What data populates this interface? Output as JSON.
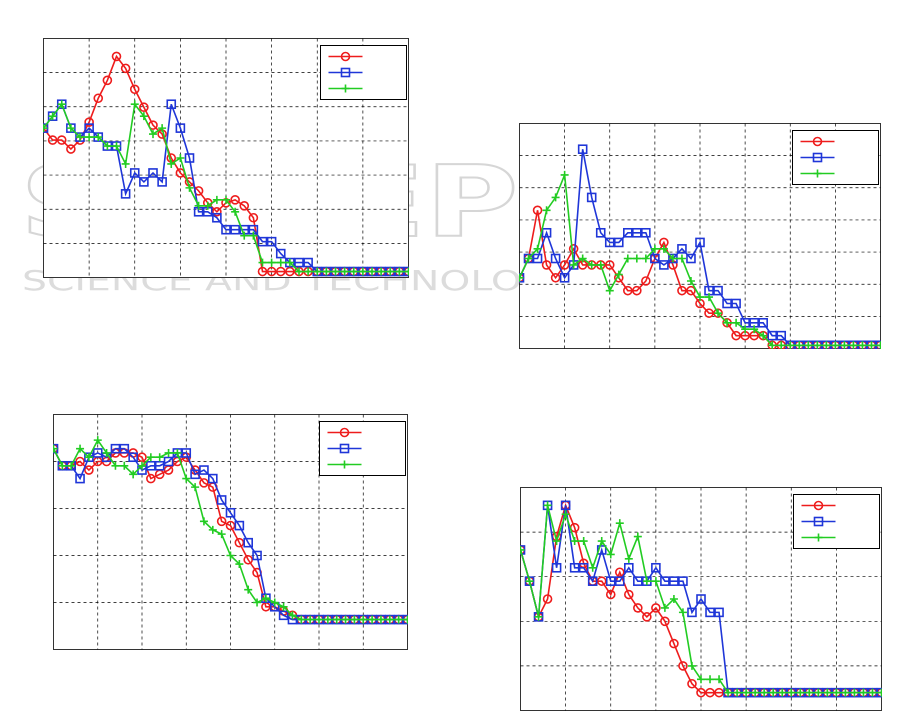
{
  "watermark": {
    "main": "SCITEPRESS",
    "sub": "SCIENCE AND TECHNOLOGY PUBLICATIONS"
  },
  "colors": {
    "s1": "#ee1c1c",
    "s2": "#1f36d8",
    "s3": "#22cc22"
  },
  "chart_data": [
    {
      "type": "line",
      "grid": true,
      "legend": "top-right",
      "xlim": [
        0,
        40
      ],
      "ylim": [
        0,
        8
      ],
      "x": [
        0,
        1,
        2,
        3,
        4,
        5,
        6,
        7,
        8,
        9,
        10,
        11,
        12,
        13,
        14,
        15,
        16,
        17,
        18,
        19,
        20,
        21,
        22,
        23,
        24,
        25,
        26,
        27,
        28,
        29,
        30,
        31,
        32,
        33,
        34,
        35,
        36,
        37,
        38,
        39,
        40
      ],
      "series": [
        {
          "marker": "circle",
          "color_key": "s1",
          "values": [
            5.0,
            4.6,
            4.6,
            4.3,
            4.6,
            5.2,
            6.0,
            6.6,
            7.4,
            7.0,
            6.3,
            5.7,
            5.1,
            4.8,
            4.0,
            3.5,
            3.2,
            2.9,
            2.5,
            2.2,
            2.5,
            2.6,
            2.4,
            2.0,
            0.2,
            0.2,
            0.2,
            0.2,
            0.2,
            0.2,
            0.2,
            0.2,
            0.2,
            0.2,
            0.2,
            0.2,
            0.2,
            0.2,
            0.2,
            0.2,
            0.2
          ]
        },
        {
          "marker": "square",
          "color_key": "s2",
          "values": [
            5.0,
            5.4,
            5.8,
            5.0,
            4.7,
            5.0,
            4.7,
            4.4,
            4.4,
            2.8,
            3.5,
            3.2,
            3.5,
            3.2,
            5.8,
            5.0,
            4.0,
            2.2,
            2.2,
            2.0,
            1.6,
            1.6,
            1.6,
            1.6,
            1.2,
            1.2,
            0.8,
            0.5,
            0.5,
            0.5,
            0.2,
            0.2,
            0.2,
            0.2,
            0.2,
            0.2,
            0.2,
            0.2,
            0.2,
            0.2,
            0.2
          ]
        },
        {
          "marker": "plus",
          "color_key": "s3",
          "values": [
            5.0,
            5.4,
            5.8,
            5.0,
            4.7,
            4.7,
            4.7,
            4.4,
            4.4,
            3.8,
            5.8,
            5.4,
            4.8,
            5.0,
            3.8,
            4.0,
            3.0,
            2.4,
            2.4,
            2.6,
            2.6,
            2.2,
            1.4,
            1.4,
            0.5,
            0.5,
            0.5,
            0.5,
            0.2,
            0.2,
            0.2,
            0.2,
            0.2,
            0.2,
            0.2,
            0.2,
            0.2,
            0.2,
            0.2,
            0.2,
            0.2
          ]
        }
      ]
    },
    {
      "type": "line",
      "grid": true,
      "legend": "top-right",
      "xlim": [
        0,
        40
      ],
      "ylim": [
        0,
        7
      ],
      "x": [
        0,
        1,
        2,
        3,
        4,
        5,
        6,
        7,
        8,
        9,
        10,
        11,
        12,
        13,
        14,
        15,
        16,
        17,
        18,
        19,
        20,
        21,
        22,
        23,
        24,
        25,
        26,
        27,
        28,
        29,
        30,
        31,
        32,
        33,
        34,
        35,
        36,
        37,
        38,
        39,
        40
      ],
      "series": [
        {
          "marker": "circle",
          "color_key": "s1",
          "values": [
            2.2,
            2.8,
            4.3,
            2.6,
            2.2,
            2.6,
            3.1,
            2.6,
            2.6,
            2.6,
            2.6,
            2.2,
            1.8,
            1.8,
            2.1,
            2.8,
            3.3,
            2.6,
            1.8,
            1.8,
            1.4,
            1.1,
            1.1,
            0.8,
            0.4,
            0.4,
            0.4,
            0.4,
            0.1,
            0.1,
            0.1,
            0.1,
            0.1,
            0.1,
            0.1,
            0.1,
            0.1,
            0.1,
            0.1,
            0.1,
            0.1
          ]
        },
        {
          "marker": "square",
          "color_key": "s2",
          "values": [
            2.2,
            2.8,
            2.8,
            3.6,
            2.8,
            2.2,
            2.6,
            6.2,
            4.7,
            3.6,
            3.3,
            3.3,
            3.6,
            3.6,
            3.6,
            2.8,
            2.6,
            2.8,
            3.1,
            2.8,
            3.3,
            1.8,
            1.8,
            1.4,
            1.4,
            0.8,
            0.8,
            0.8,
            0.4,
            0.4,
            0.1,
            0.1,
            0.1,
            0.1,
            0.1,
            0.1,
            0.1,
            0.1,
            0.1,
            0.1,
            0.1
          ]
        },
        {
          "marker": "plus",
          "color_key": "s3",
          "values": [
            2.2,
            2.8,
            3.1,
            4.3,
            4.7,
            5.4,
            2.6,
            2.8,
            2.6,
            2.6,
            1.8,
            2.3,
            2.8,
            2.8,
            2.8,
            3.1,
            3.1,
            2.8,
            2.8,
            2.1,
            1.6,
            1.6,
            1.1,
            0.8,
            0.8,
            0.6,
            0.6,
            0.4,
            0.1,
            0.1,
            0.1,
            0.1,
            0.1,
            0.1,
            0.1,
            0.1,
            0.1,
            0.1,
            0.1,
            0.1,
            0.1
          ]
        }
      ]
    },
    {
      "type": "line",
      "grid": true,
      "legend": "top-right",
      "xlim": [
        0,
        40
      ],
      "ylim": [
        0,
        5.5
      ],
      "x": [
        0,
        1,
        2,
        3,
        4,
        5,
        6,
        7,
        8,
        9,
        10,
        11,
        12,
        13,
        14,
        15,
        16,
        17,
        18,
        19,
        20,
        21,
        22,
        23,
        24,
        25,
        26,
        27,
        28,
        29,
        30,
        31,
        32,
        33,
        34,
        35,
        36,
        37,
        38,
        39,
        40
      ],
      "series": [
        {
          "marker": "circle",
          "color_key": "s1",
          "values": [
            4.7,
            4.3,
            4.3,
            4.4,
            4.2,
            4.4,
            4.4,
            4.6,
            4.6,
            4.6,
            4.5,
            4.0,
            4.1,
            4.2,
            4.4,
            4.5,
            4.2,
            3.9,
            3.8,
            3.0,
            2.9,
            2.5,
            2.1,
            1.8,
            1.0,
            1.0,
            0.9,
            0.8,
            0.7,
            0.7,
            0.7,
            0.7,
            0.7,
            0.7,
            0.7,
            0.7,
            0.7,
            0.7,
            0.7,
            0.7,
            0.7
          ]
        },
        {
          "marker": "square",
          "color_key": "s2",
          "values": [
            4.7,
            4.3,
            4.3,
            4.0,
            4.5,
            4.6,
            4.5,
            4.7,
            4.7,
            4.5,
            4.2,
            4.3,
            4.3,
            4.4,
            4.6,
            4.6,
            4.1,
            4.2,
            4.0,
            3.5,
            3.2,
            2.9,
            2.5,
            2.2,
            1.2,
            1.0,
            0.8,
            0.7,
            0.7,
            0.7,
            0.7,
            0.7,
            0.7,
            0.7,
            0.7,
            0.7,
            0.7,
            0.7,
            0.7,
            0.7,
            0.7
          ]
        },
        {
          "marker": "plus",
          "color_key": "s3",
          "values": [
            4.7,
            4.3,
            4.3,
            4.7,
            4.5,
            4.9,
            4.6,
            4.3,
            4.3,
            4.1,
            4.3,
            4.5,
            4.5,
            4.6,
            4.6,
            4.0,
            3.8,
            3.0,
            2.8,
            2.7,
            2.2,
            2.0,
            1.4,
            1.1,
            1.2,
            1.1,
            1.0,
            0.8,
            0.7,
            0.7,
            0.7,
            0.7,
            0.7,
            0.7,
            0.7,
            0.7,
            0.7,
            0.7,
            0.7,
            0.7,
            0.7
          ]
        }
      ]
    },
    {
      "type": "line",
      "grid": true,
      "legend": "top-right",
      "xlim": [
        0,
        40
      ],
      "ylim": [
        0,
        5
      ],
      "x": [
        0,
        1,
        2,
        3,
        4,
        5,
        6,
        7,
        8,
        9,
        10,
        11,
        12,
        13,
        14,
        15,
        16,
        17,
        18,
        19,
        20,
        21,
        22,
        23,
        24,
        25,
        26,
        27,
        28,
        29,
        30,
        31,
        32,
        33,
        34,
        35,
        36,
        37,
        38,
        39,
        40
      ],
      "series": [
        {
          "marker": "circle",
          "color_key": "s1",
          "values": [
            3.6,
            2.9,
            2.1,
            2.5,
            3.9,
            4.6,
            4.1,
            3.3,
            2.9,
            2.9,
            2.6,
            3.1,
            2.6,
            2.3,
            2.1,
            2.3,
            2.0,
            1.5,
            1.0,
            0.6,
            0.4,
            0.4,
            0.4,
            0.4,
            0.4,
            0.4,
            0.4,
            0.4,
            0.4,
            0.4,
            0.4,
            0.4,
            0.4,
            0.4,
            0.4,
            0.4,
            0.4,
            0.4,
            0.4,
            0.4,
            0.4
          ]
        },
        {
          "marker": "square",
          "color_key": "s2",
          "values": [
            3.6,
            2.9,
            2.1,
            4.6,
            3.2,
            4.6,
            3.2,
            3.2,
            2.9,
            3.6,
            2.9,
            2.9,
            3.2,
            2.9,
            2.9,
            3.2,
            2.9,
            2.9,
            2.9,
            2.2,
            2.5,
            2.2,
            2.2,
            0.4,
            0.4,
            0.4,
            0.4,
            0.4,
            0.4,
            0.4,
            0.4,
            0.4,
            0.4,
            0.4,
            0.4,
            0.4,
            0.4,
            0.4,
            0.4,
            0.4,
            0.4
          ]
        },
        {
          "marker": "plus",
          "color_key": "s3",
          "values": [
            3.6,
            2.9,
            2.1,
            4.6,
            3.8,
            4.4,
            3.8,
            3.8,
            3.2,
            3.8,
            3.5,
            4.2,
            3.4,
            3.9,
            2.9,
            2.9,
            2.3,
            2.5,
            2.2,
            1.0,
            0.7,
            0.7,
            0.7,
            0.4,
            0.4,
            0.4,
            0.4,
            0.4,
            0.4,
            0.4,
            0.4,
            0.4,
            0.4,
            0.4,
            0.4,
            0.4,
            0.4,
            0.4,
            0.4,
            0.4,
            0.4
          ]
        }
      ]
    }
  ]
}
